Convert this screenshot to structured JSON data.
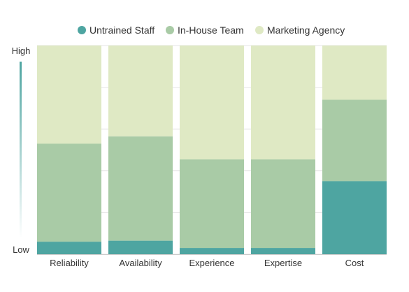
{
  "chart_data": {
    "type": "bar",
    "stacked": true,
    "categories": [
      "Reliability",
      "Availability",
      "Experience",
      "Expertise",
      "Cost"
    ],
    "series": [
      {
        "name": "Untrained Staff",
        "color": "#4ea5a1",
        "values": [
          6,
          6.5,
          3,
          3,
          35
        ]
      },
      {
        "name": "In-House Team",
        "color": "#a9cba6",
        "values": [
          47,
          50,
          42.5,
          42.5,
          39
        ]
      },
      {
        "name": "Marketing Agency",
        "color": "#dfe9c4",
        "values": [
          47,
          43.5,
          54.5,
          54.5,
          26
        ]
      }
    ],
    "ylim": [
      0,
      100
    ],
    "y_axis": {
      "top_label": "High",
      "bottom_label": "Low",
      "indicator": "gradient arrow from Low to High"
    },
    "legend": "top",
    "grid": true
  }
}
